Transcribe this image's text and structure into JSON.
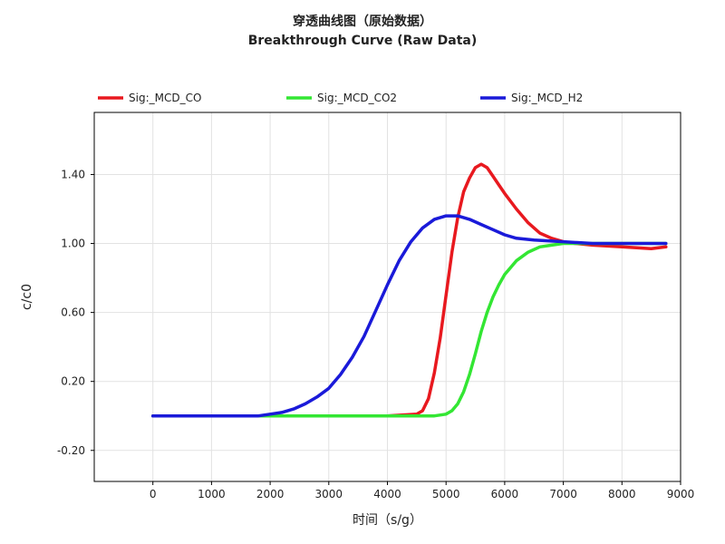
{
  "chart_data": {
    "type": "line",
    "title": "穿透曲线图（原始数据）",
    "subtitle": "Breakthrough Curve (Raw Data)",
    "xlabel": "时间（s/g）",
    "ylabel": "c/c0",
    "xlim": [
      -1000,
      9000
    ],
    "ylim": [
      -0.38,
      1.76
    ],
    "x_ticks": [
      0,
      1000,
      2000,
      3000,
      4000,
      5000,
      6000,
      7000,
      8000,
      9000
    ],
    "y_ticks": [
      -0.2,
      0.2,
      0.6,
      1.0,
      1.4
    ],
    "y_tick_labels": [
      "-0.20",
      "0.20",
      "0.60",
      "1.00",
      "1.40"
    ],
    "grid": true,
    "legend": "top",
    "series": [
      {
        "name": "Sig:_MCD_CO",
        "color": "#e8191f",
        "x": [
          0,
          1000,
          2000,
          3000,
          4000,
          4500,
          4600,
          4700,
          4800,
          4900,
          5000,
          5100,
          5200,
          5300,
          5400,
          5500,
          5600,
          5700,
          5800,
          5900,
          6000,
          6200,
          6400,
          6600,
          6800,
          7000,
          7200,
          7500,
          8000,
          8500,
          8750
        ],
        "y": [
          0.0,
          0.0,
          0.0,
          0.0,
          0.0,
          0.01,
          0.03,
          0.1,
          0.25,
          0.45,
          0.7,
          0.95,
          1.15,
          1.3,
          1.38,
          1.44,
          1.46,
          1.44,
          1.39,
          1.34,
          1.29,
          1.2,
          1.12,
          1.06,
          1.03,
          1.01,
          1.0,
          0.99,
          0.98,
          0.97,
          0.98
        ]
      },
      {
        "name": "Sig:_MCD_CO2",
        "color": "#33e633",
        "x": [
          0,
          1000,
          2000,
          3000,
          4000,
          4800,
          5000,
          5100,
          5200,
          5300,
          5400,
          5500,
          5600,
          5700,
          5800,
          5900,
          6000,
          6200,
          6400,
          6600,
          6800,
          7000,
          7200,
          7500,
          8000,
          8500,
          8750
        ],
        "y": [
          0.0,
          0.0,
          0.0,
          0.0,
          0.0,
          0.0,
          0.01,
          0.03,
          0.07,
          0.14,
          0.24,
          0.36,
          0.49,
          0.6,
          0.69,
          0.76,
          0.82,
          0.9,
          0.95,
          0.98,
          0.99,
          1.0,
          1.0,
          1.0,
          1.0,
          1.0,
          1.0
        ]
      },
      {
        "name": "Sig:_MCD_H2",
        "color": "#1a1ad9",
        "x": [
          0,
          1000,
          1800,
          2000,
          2200,
          2400,
          2600,
          2800,
          3000,
          3200,
          3400,
          3600,
          3800,
          4000,
          4200,
          4400,
          4600,
          4800,
          5000,
          5200,
          5400,
          5600,
          5800,
          6000,
          6200,
          6500,
          7000,
          7500,
          8000,
          8750
        ],
        "y": [
          0.0,
          0.0,
          0.0,
          0.01,
          0.02,
          0.04,
          0.07,
          0.11,
          0.16,
          0.24,
          0.34,
          0.46,
          0.61,
          0.76,
          0.9,
          1.01,
          1.09,
          1.14,
          1.16,
          1.16,
          1.14,
          1.11,
          1.08,
          1.05,
          1.03,
          1.02,
          1.01,
          1.0,
          1.0,
          1.0
        ]
      }
    ]
  }
}
